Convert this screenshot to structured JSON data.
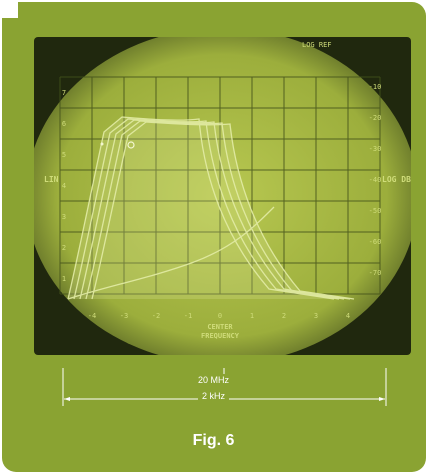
{
  "screen": {
    "top_right_label": "LOG REF",
    "left_axis_label": "LIN",
    "right_axis_label": "LOG DB",
    "center_label_line1": "CENTER",
    "center_label_line2": "FREQUENCY",
    "x_ticks": [
      "-4",
      "-3",
      "-2",
      "-1",
      "0",
      "1",
      "2",
      "3",
      "4"
    ],
    "left_ticks": [
      "7",
      "6",
      "5",
      "4",
      "3",
      "2",
      "1"
    ],
    "right_ticks": [
      "-10",
      "-20",
      "-30",
      "-40",
      "-50",
      "-60",
      "-70"
    ]
  },
  "caption": {
    "center_frequency": "20 MHz",
    "span": "2 kHz"
  },
  "figure": {
    "label": "Fig. 6"
  },
  "colors": {
    "panel": "#8aa332",
    "screen_dark": "#20280e",
    "screen_glow": "#b8c851",
    "trace": "#e3eca6"
  }
}
